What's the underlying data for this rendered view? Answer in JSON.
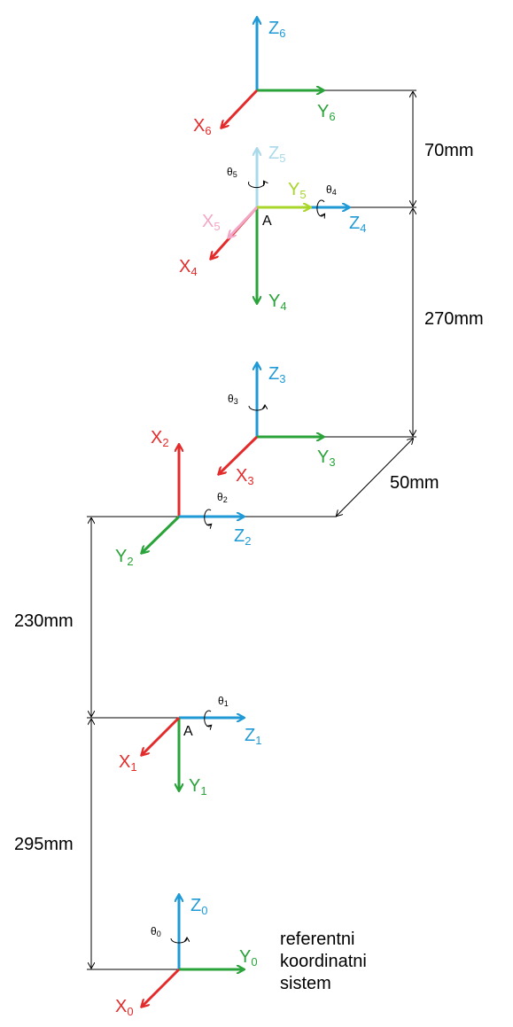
{
  "colors": {
    "x": "#e32b2b",
    "y": "#2aa33a",
    "z": "#1f9ad6",
    "x_light": "#f2a7c6",
    "y_light": "#a8d62a",
    "z_light": "#a9d9ea"
  },
  "frames": {
    "f6": {
      "x": "X",
      "x_sub": "6",
      "y": "Y",
      "y_sub": "6",
      "z": "Z",
      "z_sub": "6"
    },
    "f5": {
      "x": "X",
      "x_sub": "5",
      "y": "Y",
      "y_sub": "5",
      "z": "Z",
      "z_sub": "5",
      "theta": "θ",
      "theta_sub": "5"
    },
    "f4": {
      "x": "X",
      "x_sub": "4",
      "y": "Y",
      "y_sub": "4",
      "z": "Z",
      "z_sub": "4",
      "theta": "θ",
      "theta_sub": "4",
      "point": "A"
    },
    "f3": {
      "x": "X",
      "x_sub": "3",
      "y": "Y",
      "y_sub": "3",
      "z": "Z",
      "z_sub": "3",
      "theta": "θ",
      "theta_sub": "3"
    },
    "f2": {
      "x": "X",
      "x_sub": "2",
      "y": "Y",
      "y_sub": "2",
      "z": "Z",
      "z_sub": "2",
      "theta": "θ",
      "theta_sub": "2"
    },
    "f1": {
      "x": "X",
      "x_sub": "1",
      "y": "Y",
      "y_sub": "1",
      "z": "Z",
      "z_sub": "1",
      "theta": "θ",
      "theta_sub": "1",
      "point": "A"
    },
    "f0": {
      "x": "X",
      "x_sub": "0",
      "y": "Y",
      "y_sub": "0",
      "z": "Z",
      "z_sub": "0",
      "theta": "θ",
      "theta_sub": "0"
    }
  },
  "dimensions": {
    "d70": "70mm",
    "d270": "270mm",
    "d50": "50mm",
    "d230": "230mm",
    "d295": "295mm"
  },
  "caption": {
    "line1": "referentni",
    "line2": "koordinatni",
    "line3": "sistem"
  }
}
